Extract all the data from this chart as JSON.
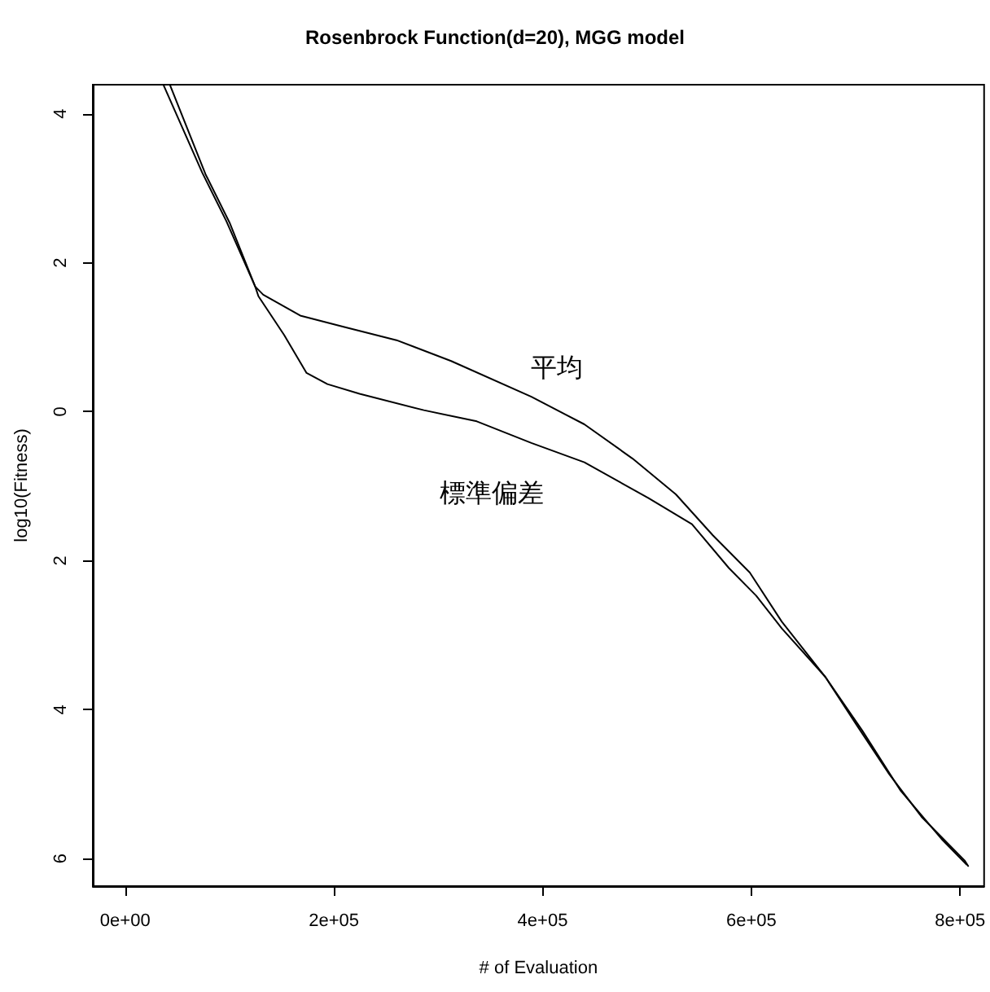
{
  "chart_data": {
    "type": "line",
    "title": "Rosenbrock Function(d=20), MGG model",
    "xlabel": "# of Evaluation",
    "ylabel": "log10(Fitness)",
    "xlim": [
      -31000,
      823000
    ],
    "xticks": [
      {
        "value": 0,
        "label": "0e+00"
      },
      {
        "value": 200000,
        "label": "2e+05"
      },
      {
        "value": 400000,
        "label": "4e+05"
      },
      {
        "value": 600000,
        "label": "6e+05"
      },
      {
        "value": 800000,
        "label": "8e+05"
      }
    ],
    "ylim": [
      -6.37,
      4.39
    ],
    "yticks": [
      {
        "value": -6,
        "label": "6"
      },
      {
        "value": -4,
        "label": "4"
      },
      {
        "value": -2,
        "label": "2"
      },
      0,
      2,
      4
    ],
    "grid": false,
    "legend": false,
    "marker": "none",
    "line_style": "solid",
    "series": [
      {
        "name": "平均",
        "color": "#000000",
        "x": [
          36900,
          73800,
          96900,
          124600,
          132300,
          167700,
          209200,
          260000,
          312300,
          389200,
          440000,
          486200,
          527700,
          563100,
          598500,
          629200,
          670800,
          701500,
          732300,
          763100,
          804600,
          807700
        ],
        "values": [
          4.38,
          3.21,
          2.56,
          1.68,
          1.57,
          1.29,
          1.14,
          0.96,
          0.68,
          0.2,
          -0.17,
          -0.63,
          -1.11,
          -1.66,
          -2.16,
          -2.82,
          -3.56,
          -4.22,
          -4.87,
          -5.44,
          -6.03,
          -6.1
        ]
      },
      {
        "name": "標準偏差",
        "color": "#000000",
        "x": [
          43100,
          76900,
          100000,
          124600,
          127700,
          152300,
          173800,
          193800,
          224600,
          286200,
          336900,
          389200,
          440000,
          501500,
          543100,
          578500,
          604600,
          629200,
          670800,
          706200,
          743100,
          783100,
          806200
        ],
        "values": [
          4.38,
          3.19,
          2.54,
          1.68,
          1.55,
          1.03,
          0.52,
          0.37,
          0.24,
          0.02,
          -0.13,
          -0.42,
          -0.68,
          -1.16,
          -1.51,
          -2.1,
          -2.47,
          -2.91,
          -3.56,
          -4.28,
          -5.09,
          -5.75,
          -6.08
        ]
      }
    ]
  }
}
